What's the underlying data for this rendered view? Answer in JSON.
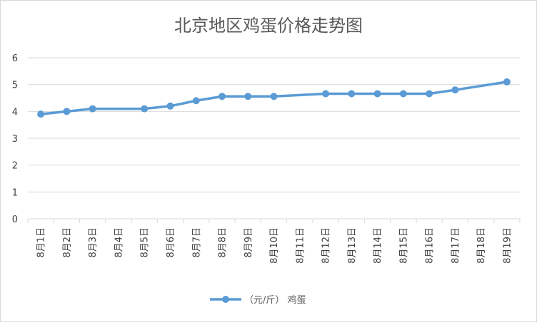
{
  "chart_data": {
    "type": "line",
    "title": "北京地区鸡蛋价格走势图",
    "categories": [
      "8月1日",
      "8月2日",
      "8月3日",
      "8月4日",
      "8月5日",
      "8月6日",
      "8月7日",
      "8月8日",
      "8月9日",
      "8月10日",
      "8月11日",
      "8月12日",
      "8月13日",
      "8月14日",
      "8月15日",
      "8月16日",
      "8月17日",
      "8月18日",
      "8月19日"
    ],
    "series": [
      {
        "name": "（元/斤） 鸡蛋",
        "color": "#5b9bd5",
        "values": [
          3.9,
          4.0,
          4.1,
          null,
          4.1,
          4.2,
          4.4,
          4.56,
          4.56,
          4.56,
          null,
          4.66,
          4.66,
          4.66,
          4.66,
          4.66,
          4.8,
          null,
          5.1
        ]
      }
    ],
    "ylim": [
      0,
      6
    ],
    "yticks": [
      "0",
      "1",
      "2",
      "3",
      "4",
      "5",
      "6"
    ],
    "grid": true,
    "legend_position": "bottom",
    "missing_values": "connected"
  }
}
